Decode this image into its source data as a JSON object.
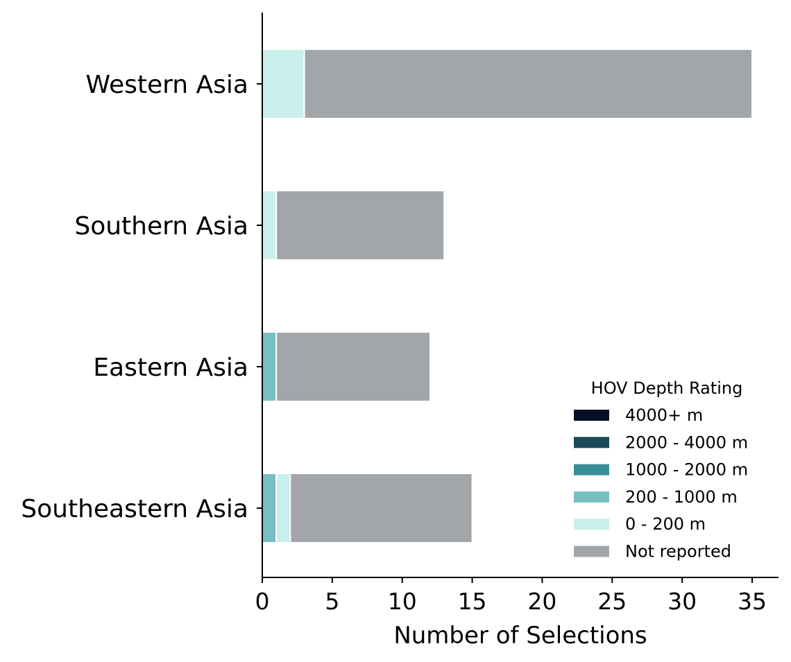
{
  "chart_data": {
    "type": "bar",
    "orientation": "horizontal",
    "stacked": true,
    "categories": [
      "Western Asia",
      "Southern Asia",
      "Eastern Asia",
      "Southeastern Asia"
    ],
    "series": [
      {
        "name": "4000+ m",
        "color": "#020f25",
        "values": [
          0,
          0,
          0,
          0
        ]
      },
      {
        "name": "2000 - 4000 m",
        "color": "#1b4a5a",
        "values": [
          0,
          0,
          0,
          0
        ]
      },
      {
        "name": "1000 - 2000 m",
        "color": "#388e98",
        "values": [
          0,
          0,
          0,
          0
        ]
      },
      {
        "name": "200 - 1000 m",
        "color": "#77bfc2",
        "values": [
          0,
          0,
          1,
          1
        ]
      },
      {
        "name": "0 - 200 m",
        "color": "#c9efec",
        "values": [
          3,
          1,
          0,
          1
        ]
      },
      {
        "name": "Not reported",
        "color": "#a3a6a8",
        "values": [
          32,
          12,
          11,
          13
        ]
      }
    ],
    "xlabel": "Number of Selections",
    "ylabel": "",
    "xlim": [
      0,
      37
    ],
    "xticks": [
      0,
      5,
      10,
      15,
      20,
      25,
      30,
      35
    ],
    "legend": {
      "title": "HOV Depth Rating",
      "placement": "lower-right"
    },
    "grid": false
  }
}
